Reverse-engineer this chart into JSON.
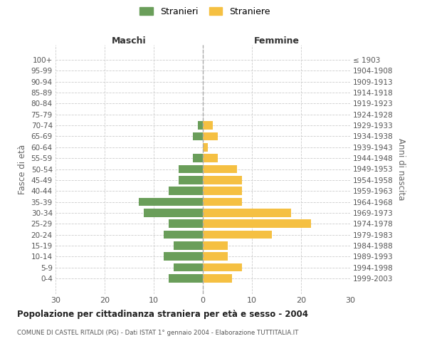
{
  "age_groups": [
    "0-4",
    "5-9",
    "10-14",
    "15-19",
    "20-24",
    "25-29",
    "30-34",
    "35-39",
    "40-44",
    "45-49",
    "50-54",
    "55-59",
    "60-64",
    "65-69",
    "70-74",
    "75-79",
    "80-84",
    "85-89",
    "90-94",
    "95-99",
    "100+"
  ],
  "birth_years": [
    "1999-2003",
    "1994-1998",
    "1989-1993",
    "1984-1988",
    "1979-1983",
    "1974-1978",
    "1969-1973",
    "1964-1968",
    "1959-1963",
    "1954-1958",
    "1949-1953",
    "1944-1948",
    "1939-1943",
    "1934-1938",
    "1929-1933",
    "1924-1928",
    "1919-1923",
    "1914-1918",
    "1909-1913",
    "1904-1908",
    "≤ 1903"
  ],
  "maschi": [
    7,
    6,
    8,
    6,
    8,
    7,
    12,
    13,
    7,
    5,
    5,
    2,
    0,
    2,
    1,
    0,
    0,
    0,
    0,
    0,
    0
  ],
  "femmine": [
    6,
    8,
    5,
    5,
    14,
    22,
    18,
    8,
    8,
    8,
    7,
    3,
    1,
    3,
    2,
    0,
    0,
    0,
    0,
    0,
    0
  ],
  "maschi_color": "#6a9e5a",
  "femmine_color": "#f5c042",
  "center_line_color": "#aaaaaa",
  "grid_color": "#cccccc",
  "bg_color": "#ffffff",
  "title": "Popolazione per cittadinanza straniera per età e sesso - 2004",
  "subtitle": "COMUNE DI CASTEL RITALDI (PG) - Dati ISTAT 1° gennaio 2004 - Elaborazione TUTTITALIA.IT",
  "ylabel_left": "Fasce di età",
  "ylabel_right": "Anni di nascita",
  "xlabel_left": "Maschi",
  "xlabel_right": "Femmine",
  "legend_maschi": "Stranieri",
  "legend_femmine": "Straniere",
  "xlim": 30
}
